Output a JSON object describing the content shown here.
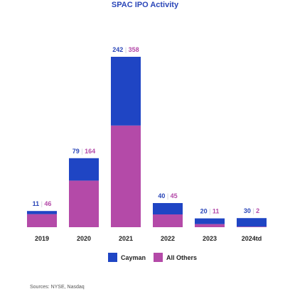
{
  "chart_data": {
    "type": "bar",
    "stacked": true,
    "title": "SPAC IPO Activity",
    "categories": [
      "2019",
      "2020",
      "2021",
      "2022",
      "2023",
      "2024td"
    ],
    "series": [
      {
        "name": "Cayman",
        "values": [
          11,
          79,
          242,
          40,
          20,
          30
        ],
        "color": "#1f45c4",
        "label_color": "#2a46b8"
      },
      {
        "name": "All Others",
        "values": [
          46,
          164,
          358,
          45,
          11,
          2
        ],
        "color": "#b44aa8",
        "label_color": "#b44aa8"
      }
    ],
    "label_separator": "|",
    "separator_color": "#c9c9d6",
    "legend_position": "bottom",
    "grid": false,
    "source_note": "Sources: NYSE, Nasdaq",
    "title_color": "#2a46b8",
    "category_label_color": "#222222"
  }
}
